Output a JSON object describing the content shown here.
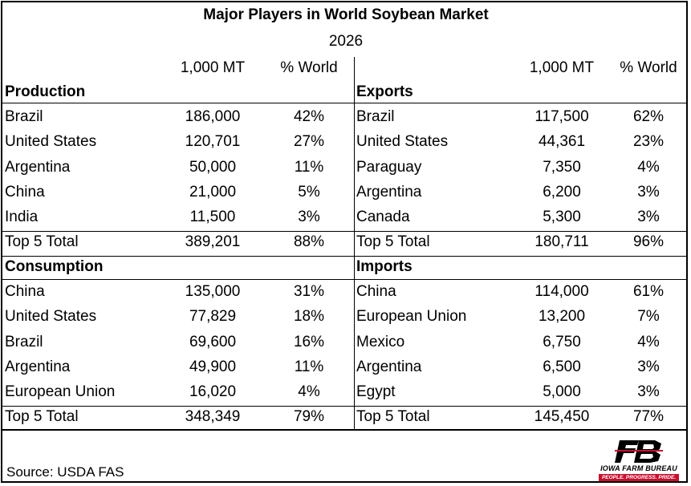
{
  "chart_data": {
    "type": "table",
    "title": "Major Players in World Soybean Market",
    "subtitle": "2026",
    "column_headers": {
      "left_value": "1,000 MT",
      "left_pct": "% World",
      "right_value": "1,000 MT",
      "right_pct": "% World"
    },
    "sections": [
      {
        "id": "production",
        "title": "Production",
        "rows": [
          {
            "country": "Brazil",
            "value": "186,000",
            "pct": "42%"
          },
          {
            "country": "United States",
            "value": "120,701",
            "pct": "27%"
          },
          {
            "country": "Argentina",
            "value": "50,000",
            "pct": "11%"
          },
          {
            "country": "China",
            "value": "21,000",
            "pct": "5%"
          },
          {
            "country": "India",
            "value": "11,500",
            "pct": "3%"
          }
        ],
        "total": {
          "label": "Top 5 Total",
          "value": "389,201",
          "pct": "88%"
        }
      },
      {
        "id": "exports",
        "title": "Exports",
        "rows": [
          {
            "country": "Brazil",
            "value": "117,500",
            "pct": "62%"
          },
          {
            "country": "United States",
            "value": "44,361",
            "pct": "23%"
          },
          {
            "country": "Paraguay",
            "value": "7,350",
            "pct": "4%"
          },
          {
            "country": "Argentina",
            "value": "6,200",
            "pct": "3%"
          },
          {
            "country": "Canada",
            "value": "5,300",
            "pct": "3%"
          }
        ],
        "total": {
          "label": "Top 5 Total",
          "value": "180,711",
          "pct": "96%"
        }
      },
      {
        "id": "consumption",
        "title": "Consumption",
        "rows": [
          {
            "country": "China",
            "value": "135,000",
            "pct": "31%"
          },
          {
            "country": "United States",
            "value": "77,829",
            "pct": "18%"
          },
          {
            "country": "Brazil",
            "value": "69,600",
            "pct": "16%"
          },
          {
            "country": "Argentina",
            "value": "49,900",
            "pct": "11%"
          },
          {
            "country": "European Union",
            "value": "16,020",
            "pct": "4%"
          }
        ],
        "total": {
          "label": "Top 5 Total",
          "value": "348,349",
          "pct": "79%"
        }
      },
      {
        "id": "imports",
        "title": "Imports",
        "rows": [
          {
            "country": "China",
            "value": "114,000",
            "pct": "61%"
          },
          {
            "country": "European Union",
            "value": "13,200",
            "pct": "7%"
          },
          {
            "country": "Mexico",
            "value": "6,750",
            "pct": "4%"
          },
          {
            "country": "Argentina",
            "value": "6,500",
            "pct": "3%"
          },
          {
            "country": "Egypt",
            "value": "5,000",
            "pct": "3%"
          }
        ],
        "total": {
          "label": "Top 5 Total",
          "value": "145,450",
          "pct": "77%"
        }
      }
    ]
  },
  "source": "Source: USDA FAS",
  "logo": {
    "icon": "iowa-farm-bureau-logo",
    "line1": "IOWA FARM BUREAU",
    "line2": "PEOPLE. PROGRESS. PRIDE.",
    "brand_color": "#c8102e"
  }
}
